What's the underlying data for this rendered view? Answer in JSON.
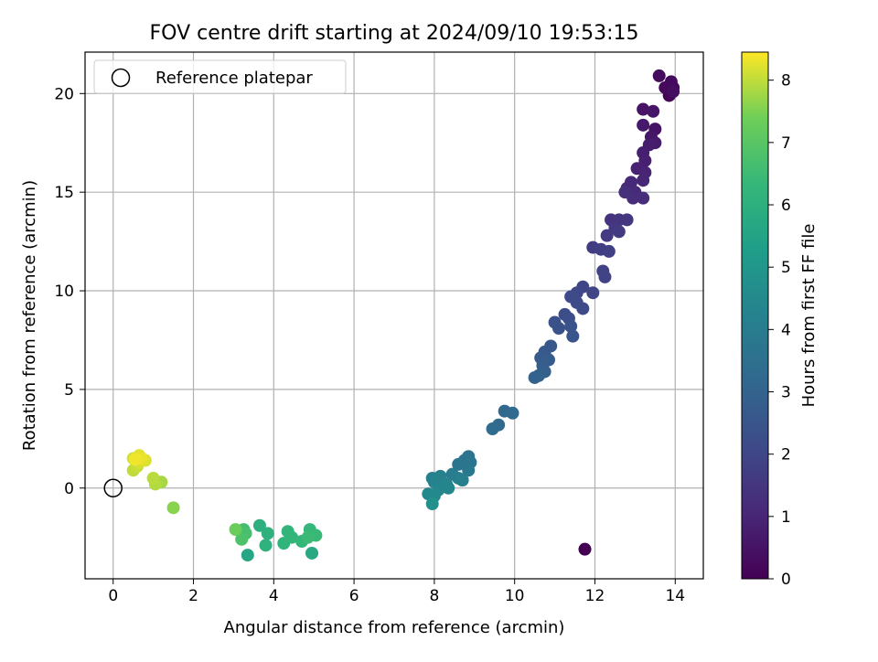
{
  "chart_data": {
    "type": "scatter",
    "title": "FOV centre drift starting at 2024/09/10 19:53:15",
    "xlabel": "Angular distance from reference (arcmin)",
    "ylabel": "Rotation from reference (arcmin)",
    "xlim": [
      -0.7,
      14.7
    ],
    "ylim": [
      -4.6,
      22.1
    ],
    "xticks": [
      0,
      2,
      4,
      6,
      8,
      10,
      12,
      14
    ],
    "yticks": [
      0,
      5,
      10,
      15,
      20
    ],
    "grid": true,
    "legend": {
      "position": "top-left",
      "entries": [
        "Reference platepar"
      ]
    },
    "reference": {
      "x": 0,
      "y": 0
    },
    "colorbar": {
      "label": "Hours from first FF file",
      "ticks": [
        0,
        1,
        2,
        3,
        4,
        5,
        6,
        7,
        8
      ],
      "range": [
        0,
        8.45
      ],
      "colormap": "viridis"
    },
    "series": [
      {
        "points": [
          {
            "x": 11.75,
            "y": -3.1,
            "c": 0.0
          },
          {
            "x": 13.85,
            "y": 19.9,
            "c": 0.1
          },
          {
            "x": 13.95,
            "y": 20.3,
            "c": 0.15
          },
          {
            "x": 13.75,
            "y": 20.3,
            "c": 0.2
          },
          {
            "x": 13.9,
            "y": 20.6,
            "c": 0.25
          },
          {
            "x": 13.6,
            "y": 20.9,
            "c": 0.3
          },
          {
            "x": 13.95,
            "y": 20.1,
            "c": 0.35
          },
          {
            "x": 13.5,
            "y": 18.2,
            "c": 0.45
          },
          {
            "x": 13.2,
            "y": 19.2,
            "c": 0.5
          },
          {
            "x": 13.45,
            "y": 19.1,
            "c": 0.55
          },
          {
            "x": 13.4,
            "y": 17.8,
            "c": 0.6
          },
          {
            "x": 13.2,
            "y": 18.4,
            "c": 0.65
          },
          {
            "x": 13.5,
            "y": 17.5,
            "c": 0.7
          },
          {
            "x": 13.35,
            "y": 17.4,
            "c": 0.75
          },
          {
            "x": 13.2,
            "y": 17.0,
            "c": 0.8
          },
          {
            "x": 13.25,
            "y": 16.6,
            "c": 0.85
          },
          {
            "x": 13.05,
            "y": 16.2,
            "c": 0.9
          },
          {
            "x": 13.25,
            "y": 16.0,
            "c": 0.95
          },
          {
            "x": 13.2,
            "y": 15.6,
            "c": 1.0
          },
          {
            "x": 12.9,
            "y": 15.5,
            "c": 1.05
          },
          {
            "x": 12.8,
            "y": 15.2,
            "c": 1.1
          },
          {
            "x": 13.0,
            "y": 15.0,
            "c": 1.15
          },
          {
            "x": 12.95,
            "y": 14.7,
            "c": 1.2
          },
          {
            "x": 13.2,
            "y": 14.7,
            "c": 1.25
          },
          {
            "x": 12.75,
            "y": 15.0,
            "c": 1.3
          },
          {
            "x": 12.4,
            "y": 13.6,
            "c": 1.4
          },
          {
            "x": 12.6,
            "y": 13.6,
            "c": 1.45
          },
          {
            "x": 12.8,
            "y": 13.6,
            "c": 1.5
          },
          {
            "x": 12.5,
            "y": 13.2,
            "c": 1.55
          },
          {
            "x": 12.3,
            "y": 12.8,
            "c": 1.6
          },
          {
            "x": 12.6,
            "y": 13.0,
            "c": 1.65
          },
          {
            "x": 11.95,
            "y": 12.2,
            "c": 1.7
          },
          {
            "x": 12.15,
            "y": 12.1,
            "c": 1.75
          },
          {
            "x": 12.35,
            "y": 12.0,
            "c": 1.8
          },
          {
            "x": 12.2,
            "y": 11.0,
            "c": 1.85
          },
          {
            "x": 12.25,
            "y": 10.7,
            "c": 1.9
          },
          {
            "x": 11.95,
            "y": 9.9,
            "c": 1.95
          },
          {
            "x": 11.7,
            "y": 10.2,
            "c": 2.0
          },
          {
            "x": 11.55,
            "y": 9.9,
            "c": 2.05
          },
          {
            "x": 11.4,
            "y": 9.7,
            "c": 2.1
          },
          {
            "x": 11.55,
            "y": 9.4,
            "c": 2.15
          },
          {
            "x": 11.7,
            "y": 9.1,
            "c": 2.2
          },
          {
            "x": 11.25,
            "y": 8.8,
            "c": 2.25
          },
          {
            "x": 11.35,
            "y": 8.6,
            "c": 2.3
          },
          {
            "x": 11.0,
            "y": 8.4,
            "c": 2.35
          },
          {
            "x": 11.1,
            "y": 8.1,
            "c": 2.4
          },
          {
            "x": 11.4,
            "y": 8.2,
            "c": 2.45
          },
          {
            "x": 11.45,
            "y": 7.7,
            "c": 2.5
          },
          {
            "x": 10.9,
            "y": 7.2,
            "c": 2.6
          },
          {
            "x": 10.75,
            "y": 6.9,
            "c": 2.65
          },
          {
            "x": 10.65,
            "y": 6.6,
            "c": 2.7
          },
          {
            "x": 10.85,
            "y": 6.5,
            "c": 2.75
          },
          {
            "x": 10.7,
            "y": 6.2,
            "c": 2.8
          },
          {
            "x": 10.75,
            "y": 5.9,
            "c": 2.85
          },
          {
            "x": 10.5,
            "y": 5.6,
            "c": 2.95
          },
          {
            "x": 10.6,
            "y": 5.7,
            "c": 3.0
          },
          {
            "x": 9.75,
            "y": 3.9,
            "c": 3.2
          },
          {
            "x": 9.95,
            "y": 3.8,
            "c": 3.25
          },
          {
            "x": 9.6,
            "y": 3.2,
            "c": 3.3
          },
          {
            "x": 9.45,
            "y": 3.0,
            "c": 3.35
          },
          {
            "x": 8.85,
            "y": 1.6,
            "c": 3.6
          },
          {
            "x": 8.75,
            "y": 1.4,
            "c": 3.65
          },
          {
            "x": 8.9,
            "y": 1.3,
            "c": 3.7
          },
          {
            "x": 8.6,
            "y": 1.2,
            "c": 3.75
          },
          {
            "x": 8.85,
            "y": 0.9,
            "c": 3.8
          },
          {
            "x": 8.45,
            "y": 0.7,
            "c": 4.0
          },
          {
            "x": 8.6,
            "y": 0.5,
            "c": 4.05
          },
          {
            "x": 8.7,
            "y": 0.4,
            "c": 4.1
          },
          {
            "x": 8.15,
            "y": 0.6,
            "c": 4.15
          },
          {
            "x": 7.95,
            "y": 0.5,
            "c": 4.2
          },
          {
            "x": 8.0,
            "y": 0.3,
            "c": 4.25
          },
          {
            "x": 8.3,
            "y": 0.2,
            "c": 4.3
          },
          {
            "x": 8.35,
            "y": 0.0,
            "c": 4.35
          },
          {
            "x": 8.1,
            "y": -0.1,
            "c": 4.4
          },
          {
            "x": 7.85,
            "y": -0.3,
            "c": 4.45
          },
          {
            "x": 8.0,
            "y": -0.4,
            "c": 4.5
          },
          {
            "x": 7.95,
            "y": -0.8,
            "c": 4.8
          },
          {
            "x": 3.35,
            "y": -3.4,
            "c": 5.6
          },
          {
            "x": 4.95,
            "y": -3.3,
            "c": 5.7
          },
          {
            "x": 3.65,
            "y": -1.9,
            "c": 6.0
          },
          {
            "x": 3.85,
            "y": -2.3,
            "c": 6.05
          },
          {
            "x": 3.8,
            "y": -2.9,
            "c": 6.1
          },
          {
            "x": 4.25,
            "y": -2.8,
            "c": 6.15
          },
          {
            "x": 4.35,
            "y": -2.2,
            "c": 6.2
          },
          {
            "x": 4.45,
            "y": -2.5,
            "c": 6.25
          },
          {
            "x": 4.7,
            "y": -2.7,
            "c": 6.3
          },
          {
            "x": 4.9,
            "y": -2.1,
            "c": 6.35
          },
          {
            "x": 5.05,
            "y": -2.4,
            "c": 6.4
          },
          {
            "x": 4.85,
            "y": -2.5,
            "c": 6.45
          },
          {
            "x": 3.25,
            "y": -2.1,
            "c": 6.6
          },
          {
            "x": 3.3,
            "y": -2.3,
            "c": 6.7
          },
          {
            "x": 3.2,
            "y": -2.6,
            "c": 6.8
          },
          {
            "x": 3.05,
            "y": -2.1,
            "c": 7.3
          },
          {
            "x": 1.5,
            "y": -1.0,
            "c": 7.6
          },
          {
            "x": 1.2,
            "y": 0.3,
            "c": 7.8
          },
          {
            "x": 1.05,
            "y": 0.2,
            "c": 7.9
          },
          {
            "x": 1.0,
            "y": 0.5,
            "c": 7.95
          },
          {
            "x": 0.5,
            "y": 0.9,
            "c": 8.0
          },
          {
            "x": 0.6,
            "y": 1.1,
            "c": 8.05
          },
          {
            "x": 0.5,
            "y": 1.5,
            "c": 8.1
          },
          {
            "x": 0.65,
            "y": 1.3,
            "c": 8.15
          },
          {
            "x": 0.8,
            "y": 1.4,
            "c": 8.2
          },
          {
            "x": 0.65,
            "y": 1.65,
            "c": 8.25
          },
          {
            "x": 0.7,
            "y": 1.5,
            "c": 8.3
          },
          {
            "x": 0.55,
            "y": 1.45,
            "c": 8.35
          }
        ]
      }
    ]
  }
}
